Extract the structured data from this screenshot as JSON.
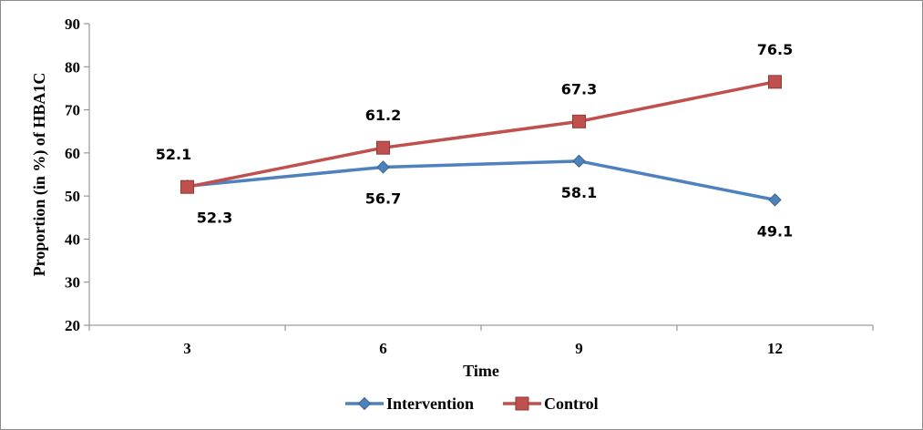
{
  "chart_data": {
    "type": "line",
    "title": "",
    "xlabel": "Time",
    "ylabel": "Proportion (in %) of HBA1C",
    "categories": [
      "3",
      "6",
      "9",
      "12"
    ],
    "ylim": [
      20,
      90
    ],
    "yticks": [
      20,
      30,
      40,
      50,
      60,
      70,
      80,
      90
    ],
    "grid": false,
    "legend_position": "bottom",
    "series": [
      {
        "name": "Intervention",
        "values": [
          52.3,
          56.7,
          58.1,
          49.1
        ],
        "color": "#4f81bd",
        "marker": "diamond",
        "label_position": "below"
      },
      {
        "name": "Control",
        "values": [
          52.1,
          61.2,
          67.3,
          76.5
        ],
        "color": "#c0504d",
        "marker": "square",
        "label_position": "above"
      }
    ]
  }
}
